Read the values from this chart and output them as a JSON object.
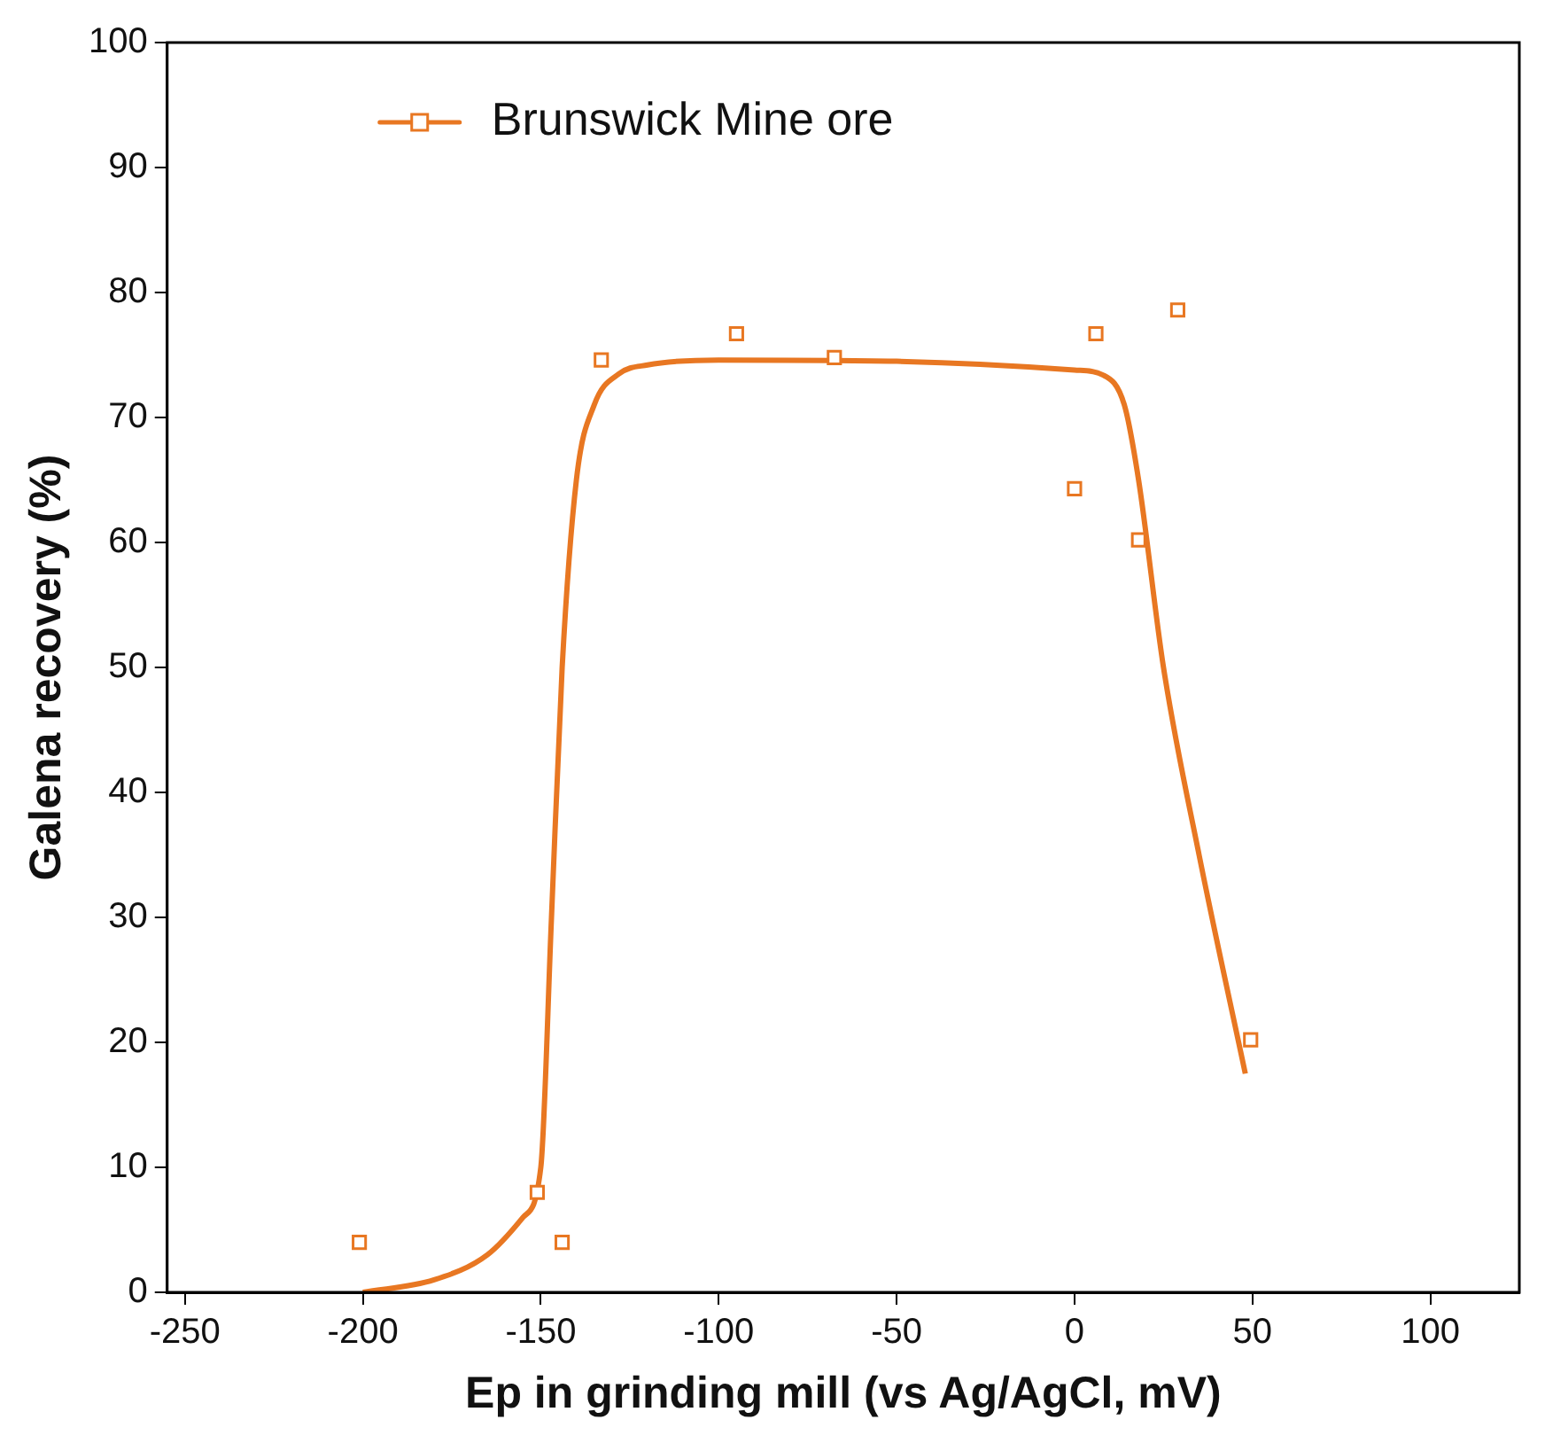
{
  "chart_data": {
    "type": "scatter",
    "xlabel": "Ep in grinding mill (vs Ag/AgCl, mV)",
    "ylabel": "Galena recovery (%)",
    "xlim": [
      -255,
      125
    ],
    "xticks": [
      -250,
      -200,
      -150,
      -100,
      -50,
      0,
      50,
      100
    ],
    "ylim": [
      0,
      100
    ],
    "yticks": [
      0,
      10,
      20,
      30,
      40,
      50,
      60,
      70,
      80,
      90,
      100
    ],
    "grid": false,
    "legend": "top left",
    "marker": "square",
    "series": [
      {
        "name": "Brunswick Mine ore",
        "type": "scatter",
        "color": "#e87722",
        "x": [
          -201,
          -151,
          -144,
          -133,
          -95,
          -67.5,
          0,
          6,
          18,
          29,
          49.5
        ],
        "values": [
          4,
          8,
          4,
          74.6,
          76.7,
          74.8,
          64.3,
          76.7,
          60.2,
          78.6,
          20.2
        ]
      },
      {
        "type": "line",
        "color": "#e87722",
        "marker": "none",
        "x": [
          -200,
          -180,
          -165,
          -155,
          -150,
          -147,
          -144,
          -140,
          -135,
          -128,
          -120,
          -100,
          -50,
          0,
          8,
          14,
          18,
          25,
          35,
          48
        ],
        "values": [
          0,
          1,
          3,
          6,
          10,
          30,
          50,
          65,
          71,
          73.5,
          74.2,
          74.6,
          74.5,
          73.8,
          73.4,
          71,
          65,
          50,
          35,
          17.5
        ]
      }
    ]
  }
}
